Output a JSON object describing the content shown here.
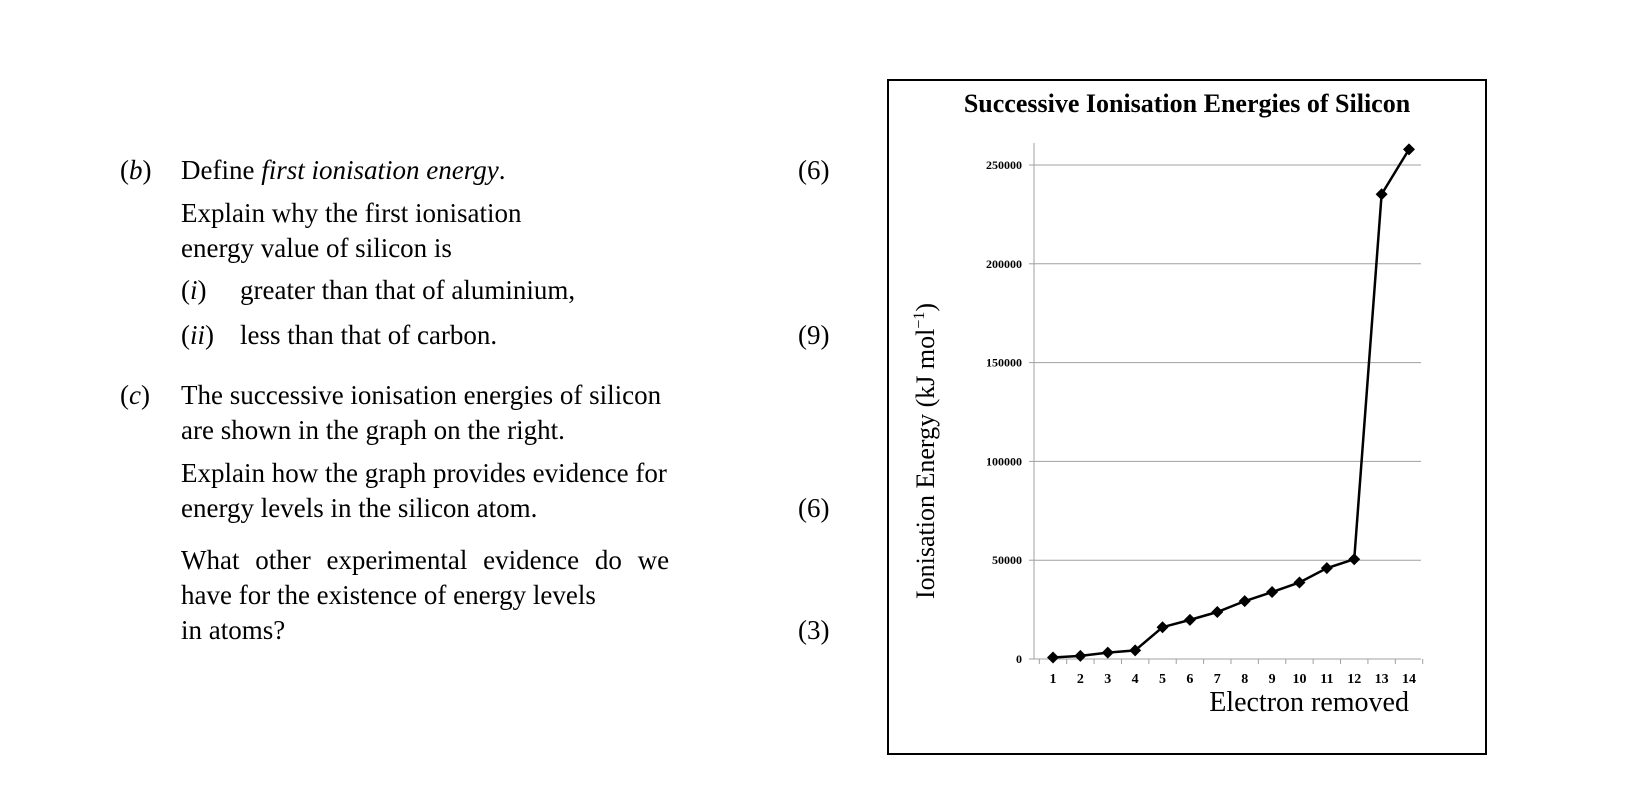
{
  "questions": {
    "b": {
      "marker": "b",
      "define_prefix": "Define ",
      "define_term": "first ionisation energy",
      "define_suffix": ".",
      "marks1": "(6)",
      "explain_line1": "Explain why the first ionisation",
      "explain_line2": "energy value of silicon is",
      "i_marker": "i",
      "i_text": "greater than that of aluminium,",
      "ii_marker": "ii",
      "ii_text": "less than that of carbon.",
      "marks2": "(9)"
    },
    "c": {
      "marker": "c",
      "line1": "The successive ionisation energies of silicon",
      "line2": "are shown in the graph on the right.",
      "line3": "Explain how the graph provides evidence for",
      "line4": "energy levels in the silicon atom.",
      "marks1": "(6)",
      "line5": "What other experimental evidence do we",
      "line6": "have for the existence of energy levels",
      "line7": "in atoms?",
      "marks2": "(3)"
    }
  },
  "chart_data": {
    "type": "line",
    "title": "Successive Ionisation Energies of Silicon",
    "xlabel": "Electron removed",
    "ylabel_main": "Ionisation Energy (kJ mol",
    "ylabel_sup": "−1",
    "ylabel_end": ")",
    "x": [
      1,
      2,
      3,
      4,
      5,
      6,
      7,
      8,
      9,
      10,
      11,
      12,
      13,
      14
    ],
    "y": [
      786,
      1577,
      3232,
      4356,
      16091,
      19805,
      23780,
      29287,
      33878,
      38726,
      45962,
      50502,
      235196,
      257923
    ],
    "ylim": [
      0,
      250000
    ],
    "yticks": [
      0,
      50000,
      100000,
      150000,
      200000,
      250000
    ],
    "ytick_labels": [
      "0",
      "50000",
      "100000",
      "150000",
      "200000",
      "250000"
    ],
    "xtick_labels": [
      "1",
      "2",
      "3",
      "4",
      "5",
      "6",
      "7",
      "8",
      "9",
      "10",
      "11",
      "12",
      "13",
      "14"
    ],
    "grid": true,
    "marker": "diamond",
    "line_color": "#000000",
    "grid_color": "#a0a0a0"
  }
}
